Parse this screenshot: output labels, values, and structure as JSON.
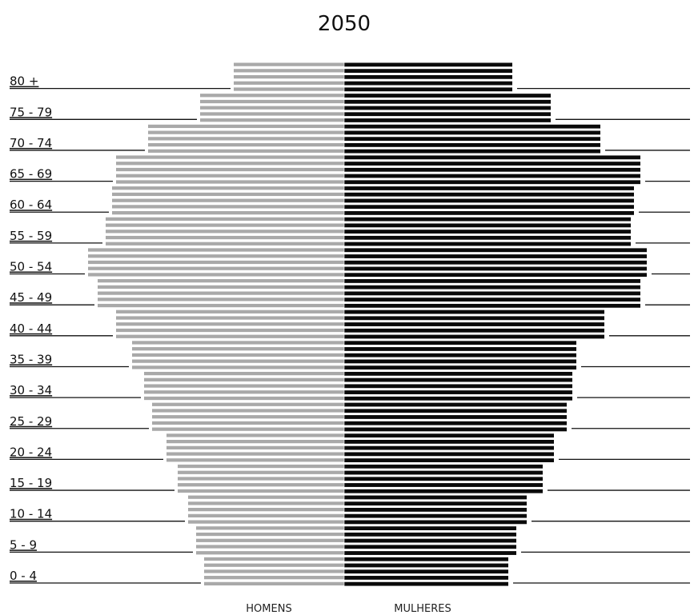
{
  "chart_data": {
    "type": "bar",
    "subtype": "population-pyramid",
    "title": "2050",
    "categories": [
      "80 +",
      "75 - 79",
      "70 - 74",
      "65 - 69",
      "60 - 64",
      "55 - 59",
      "50 - 54",
      "45 - 49",
      "40 - 44",
      "35 - 39",
      "30 - 34",
      "25 - 29",
      "20 - 24",
      "15 - 19",
      "10 - 14",
      "5 - 9",
      "0 - 4"
    ],
    "series": [
      {
        "name": "HOMENS",
        "side": "left",
        "color": "#9a9a9a",
        "values": [
          138,
          180,
          245,
          285,
          290,
          298,
          320,
          308,
          285,
          265,
          250,
          240,
          222,
          208,
          195,
          185,
          175
        ]
      },
      {
        "name": "MULHERES",
        "side": "right",
        "color": "#0a0a0a",
        "values": [
          210,
          258,
          320,
          370,
          362,
          358,
          378,
          370,
          325,
          290,
          285,
          278,
          262,
          248,
          228,
          215,
          205
        ]
      }
    ],
    "grid": false,
    "legend": "bottom"
  }
}
